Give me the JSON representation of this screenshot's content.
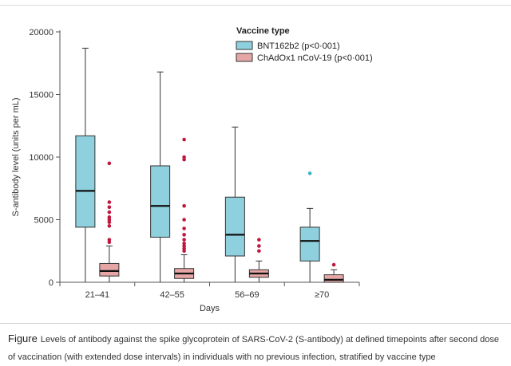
{
  "chart_data": {
    "type": "box",
    "ylabel": "S-antibody level (units per mL)",
    "xlabel": "Days",
    "ylim": [
      0,
      20000
    ],
    "yticks": [
      0,
      5000,
      10000,
      15000,
      20000
    ],
    "ytick_labels": [
      "0",
      "5000",
      "10000",
      "15000",
      "20000"
    ],
    "categories": [
      "21–41",
      "42–55",
      "56–69",
      "≥70"
    ],
    "legend_title": "Vaccine type",
    "legend_position": "top-right",
    "series": [
      {
        "name": "BNT162b2 (p<0·001)",
        "color": "#8fd0de",
        "outlier_color": "#3cb4c8",
        "boxes": [
          {
            "min": 0,
            "q1": 4400,
            "median": 7300,
            "q3": 11700,
            "max": 18700,
            "outliers": []
          },
          {
            "min": 0,
            "q1": 3600,
            "median": 6100,
            "q3": 9300,
            "max": 16800,
            "outliers": []
          },
          {
            "min": 0,
            "q1": 2100,
            "median": 3800,
            "q3": 6800,
            "max": 12400,
            "outliers": []
          },
          {
            "min": 0,
            "q1": 1700,
            "median": 3300,
            "q3": 4400,
            "max": 5900,
            "outliers": [
              8700
            ]
          }
        ]
      },
      {
        "name": "ChAdOx1 nCoV-19 (p<0·001)",
        "color": "#e6a6a6",
        "outlier_color": "#c0173f",
        "boxes": [
          {
            "min": 0,
            "q1": 500,
            "median": 900,
            "q3": 1500,
            "max": 2900,
            "outliers": [
              3200,
              3400,
              4500,
              4800,
              5000,
              5200,
              5600,
              6000,
              6400,
              9500
            ]
          },
          {
            "min": 0,
            "q1": 300,
            "median": 700,
            "q3": 1100,
            "max": 2200,
            "outliers": [
              2500,
              2700,
              2900,
              3100,
              3400,
              3800,
              4300,
              5000,
              6100,
              9800,
              10000,
              11400
            ]
          },
          {
            "min": 0,
            "q1": 400,
            "median": 700,
            "q3": 1000,
            "max": 1700,
            "outliers": [
              2500,
              2900,
              3400
            ]
          },
          {
            "min": 0,
            "q1": 0,
            "median": 200,
            "q3": 600,
            "max": 1000,
            "outliers": [
              1400
            ]
          }
        ]
      }
    ]
  },
  "caption": {
    "lead": "Figure",
    "text": "Levels of antibody against the spike glycoprotein of SARS-CoV-2 (S-antibody) at defined timepoints after second dose of vaccination (with extended dose intervals) in individuals with no previous infection, stratified by vaccine type"
  }
}
